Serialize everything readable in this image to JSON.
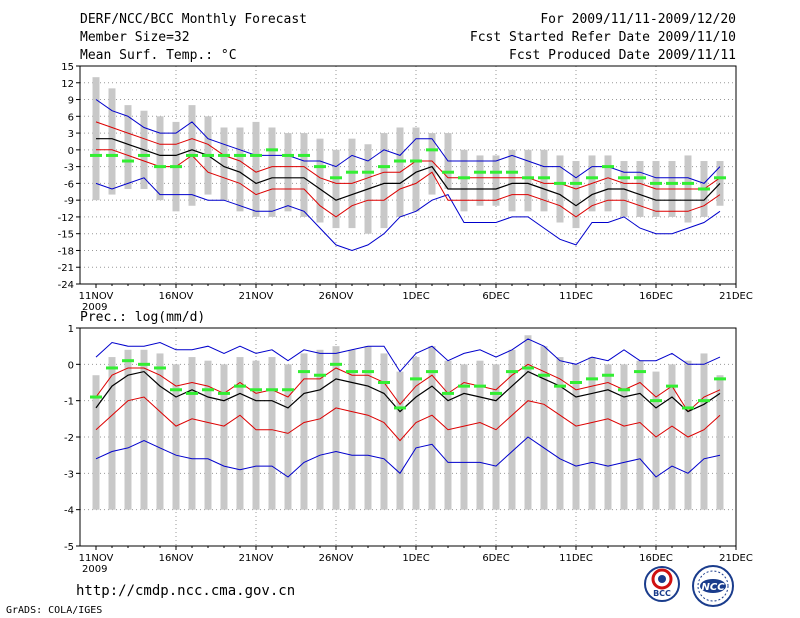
{
  "header": {
    "title": "DERF/NCC/BCC Monthly Forecast",
    "member_size": "Member Size=32",
    "variable_temp": "Mean Surf. Temp.: °C",
    "period": "For 2009/11/11-2009/12/20",
    "started": "Fcst Started Refer Date 2009/11/10",
    "produced": "Fcst Produced Date 2009/11/11"
  },
  "footer": {
    "url": "http://cmdp.ncc.cma.gov.cn",
    "grads": "GrADS: COLA/IGES",
    "logo_bcc": "BCC",
    "logo_ncc": "NCC"
  },
  "colors": {
    "envelope": "#0000cc",
    "quartile": "#dd0000",
    "median": "#000000",
    "mean": "#33ee33",
    "range": "#c8c8c8",
    "grid": "#999999"
  },
  "chart_data": [
    {
      "type": "line",
      "title": "Mean Surf. Temp.: °C",
      "x": [
        "11NOV",
        "12NOV",
        "13NOV",
        "14NOV",
        "15NOV",
        "16NOV",
        "17NOV",
        "18NOV",
        "19NOV",
        "20NOV",
        "21NOV",
        "22NOV",
        "23NOV",
        "24NOV",
        "25NOV",
        "26NOV",
        "27NOV",
        "28NOV",
        "29NOV",
        "30NOV",
        "1DEC",
        "2DEC",
        "3DEC",
        "4DEC",
        "5DEC",
        "6DEC",
        "7DEC",
        "8DEC",
        "9DEC",
        "10DEC",
        "11DEC",
        "12DEC",
        "13DEC",
        "14DEC",
        "15DEC",
        "16DEC",
        "17DEC",
        "18DEC",
        "19DEC",
        "20DEC"
      ],
      "x_ticks": [
        "11NOV",
        "16NOV",
        "21NOV",
        "26NOV",
        "1DEC",
        "6DEC",
        "11DEC",
        "16DEC",
        "21DEC"
      ],
      "x_sublabel": "2009",
      "ylim": [
        -24,
        15
      ],
      "y_ticks": [
        15,
        12,
        9,
        6,
        3,
        0,
        -3,
        -6,
        -9,
        -12,
        -15,
        -18,
        -21,
        -24
      ],
      "series": [
        {
          "name": "range_max",
          "values": [
            13,
            11,
            8,
            7,
            6,
            5,
            8,
            6,
            4,
            4,
            5,
            4,
            3,
            3,
            2,
            0,
            2,
            1,
            3,
            4,
            4,
            3,
            3,
            0,
            -1,
            -1,
            0,
            0,
            0,
            -1,
            -2,
            -1,
            -1,
            -2,
            -2,
            -2,
            -2,
            -1,
            -2,
            -2
          ]
        },
        {
          "name": "range_min",
          "values": [
            -9,
            -8,
            -7,
            -7,
            -9,
            -11,
            -10,
            -8,
            -9,
            -11,
            -12,
            -12,
            -11,
            -12,
            -13,
            -14,
            -14,
            -15,
            -14,
            -12,
            -11,
            -8,
            -7,
            -11,
            -10,
            -10,
            -11,
            -11,
            -11,
            -13,
            -14,
            -11,
            -11,
            -12,
            -12,
            -12,
            -12,
            -13,
            -12,
            -10
          ]
        },
        {
          "name": "upper",
          "values": [
            9,
            7,
            6,
            4,
            3,
            3,
            5,
            2,
            1,
            0,
            -1,
            -1,
            -1,
            -2,
            -2,
            -3,
            -1,
            -2,
            0,
            -1,
            2,
            2,
            -2,
            -2,
            -2,
            -2,
            -1,
            -2,
            -3,
            -3,
            -5,
            -3,
            -3,
            -4,
            -4,
            -5,
            -5,
            -5,
            -6,
            -3
          ]
        },
        {
          "name": "lower",
          "values": [
            -6,
            -7,
            -6,
            -5,
            -8,
            -8,
            -8,
            -9,
            -9,
            -10,
            -11,
            -11,
            -10,
            -11,
            -14,
            -17,
            -18,
            -17,
            -15,
            -12,
            -11,
            -9,
            -8,
            -13,
            -13,
            -13,
            -12,
            -12,
            -14,
            -16,
            -17,
            -13,
            -13,
            -12,
            -14,
            -15,
            -15,
            -14,
            -13,
            -11
          ]
        },
        {
          "name": "q75",
          "values": [
            5,
            4,
            3,
            2,
            1,
            1,
            2,
            1,
            -1,
            -2,
            -4,
            -3,
            -3,
            -3,
            -5,
            -6,
            -6,
            -5,
            -4,
            -4,
            -2,
            -2,
            -5,
            -5,
            -5,
            -5,
            -5,
            -5,
            -6,
            -6,
            -7,
            -6,
            -5,
            -6,
            -6,
            -7,
            -7,
            -7,
            -7,
            -5
          ]
        },
        {
          "name": "q25",
          "values": [
            0,
            0,
            -1,
            -2,
            -3,
            -3,
            -1,
            -4,
            -5,
            -6,
            -8,
            -7,
            -7,
            -7,
            -10,
            -12,
            -10,
            -9,
            -9,
            -7,
            -6,
            -4,
            -9,
            -9,
            -9,
            -9,
            -8,
            -8,
            -9,
            -10,
            -12,
            -10,
            -9,
            -9,
            -10,
            -11,
            -11,
            -11,
            -10,
            -8
          ]
        },
        {
          "name": "median",
          "values": [
            2,
            2,
            1,
            0,
            -1,
            -1,
            0,
            -1,
            -3,
            -4,
            -6,
            -5,
            -5,
            -5,
            -7,
            -9,
            -8,
            -7,
            -6,
            -6,
            -4,
            -3,
            -7,
            -7,
            -7,
            -7,
            -6,
            -6,
            -7,
            -8,
            -10,
            -8,
            -7,
            -7,
            -8,
            -9,
            -9,
            -9,
            -9,
            -6
          ]
        },
        {
          "name": "mean",
          "values": [
            -1,
            -1,
            -2,
            -1,
            -3,
            -3,
            -1,
            -1,
            -1,
            -1,
            -1,
            0,
            -1,
            -1,
            -3,
            -5,
            -4,
            -4,
            -3,
            -2,
            -2,
            0,
            -4,
            -5,
            -4,
            -4,
            -4,
            -5,
            -5,
            -6,
            -6,
            -5,
            -3,
            -5,
            -5,
            -6,
            -6,
            -6,
            -7,
            -5
          ]
        }
      ]
    },
    {
      "type": "line",
      "title": "Prec.: log(mm/d)",
      "x": [
        "11NOV",
        "12NOV",
        "13NOV",
        "14NOV",
        "15NOV",
        "16NOV",
        "17NOV",
        "18NOV",
        "19NOV",
        "20NOV",
        "21NOV",
        "22NOV",
        "23NOV",
        "24NOV",
        "25NOV",
        "26NOV",
        "27NOV",
        "28NOV",
        "29NOV",
        "30NOV",
        "1DEC",
        "2DEC",
        "3DEC",
        "4DEC",
        "5DEC",
        "6DEC",
        "7DEC",
        "8DEC",
        "9DEC",
        "10DEC",
        "11DEC",
        "12DEC",
        "13DEC",
        "14DEC",
        "15DEC",
        "16DEC",
        "17DEC",
        "18DEC",
        "19DEC",
        "20DEC"
      ],
      "x_ticks": [
        "11NOV",
        "16NOV",
        "21NOV",
        "26NOV",
        "1DEC",
        "6DEC",
        "11DEC",
        "16DEC",
        "21DEC"
      ],
      "x_sublabel": "2009",
      "ylim": [
        -5,
        1
      ],
      "y_ticks": [
        1,
        0,
        -1,
        -2,
        -3,
        -4,
        -5
      ],
      "series": [
        {
          "name": "range_max",
          "values": [
            -0.3,
            0.2,
            0.4,
            0.4,
            0.3,
            0.0,
            0.2,
            0.1,
            0.0,
            0.2,
            0.1,
            0.2,
            0.0,
            0.3,
            0.4,
            0.5,
            0.4,
            0.5,
            0.3,
            -0.2,
            0.2,
            0.5,
            0.1,
            0.0,
            0.1,
            0.0,
            0.4,
            0.8,
            0.5,
            0.2,
            0.0,
            0.2,
            0.0,
            0.0,
            0.1,
            -0.2,
            0.0,
            0.1,
            0.3,
            -0.3
          ]
        },
        {
          "name": "range_min",
          "values": [
            -4,
            -4,
            -4,
            -4,
            -4,
            -4,
            -4,
            -4,
            -4,
            -4,
            -4,
            -4,
            -4,
            -4,
            -4,
            -4,
            -4,
            -4,
            -4,
            -4,
            -4,
            -4,
            -4,
            -4,
            -4,
            -4,
            -4,
            -4,
            -4,
            -4,
            -4,
            -4,
            -4,
            -4,
            -4,
            -4,
            -4,
            -4,
            -4,
            -4
          ]
        },
        {
          "name": "upper",
          "values": [
            0.2,
            0.6,
            0.5,
            0.5,
            0.6,
            0.4,
            0.4,
            0.5,
            0.3,
            0.5,
            0.3,
            0.4,
            0.1,
            0.4,
            0.3,
            0.3,
            0.4,
            0.5,
            0.5,
            -0.2,
            0.3,
            0.5,
            0.1,
            0.3,
            0.4,
            0.2,
            0.4,
            0.7,
            0.5,
            0.1,
            0.0,
            0.2,
            0.1,
            0.4,
            0.1,
            0.1,
            0.3,
            0.0,
            0.0,
            0.2
          ]
        },
        {
          "name": "lower",
          "values": [
            -2.6,
            -2.4,
            -2.3,
            -2.1,
            -2.3,
            -2.5,
            -2.6,
            -2.6,
            -2.8,
            -2.9,
            -2.8,
            -2.8,
            -3.1,
            -2.7,
            -2.5,
            -2.4,
            -2.5,
            -2.5,
            -2.6,
            -3.0,
            -2.3,
            -2.2,
            -2.7,
            -2.7,
            -2.7,
            -2.8,
            -2.4,
            -2.0,
            -2.3,
            -2.6,
            -2.8,
            -2.7,
            -2.8,
            -2.7,
            -2.6,
            -3.1,
            -2.8,
            -3.0,
            -2.6,
            -2.5
          ]
        },
        {
          "name": "q75",
          "values": [
            -0.9,
            -0.3,
            -0.1,
            -0.1,
            -0.3,
            -0.6,
            -0.5,
            -0.6,
            -0.8,
            -0.5,
            -0.8,
            -0.7,
            -0.9,
            -0.4,
            -0.4,
            -0.1,
            -0.3,
            -0.3,
            -0.5,
            -1.1,
            -0.6,
            -0.3,
            -0.8,
            -0.5,
            -0.6,
            -0.7,
            -0.3,
            0.0,
            -0.2,
            -0.4,
            -0.7,
            -0.6,
            -0.5,
            -0.7,
            -0.5,
            -0.9,
            -0.6,
            -1.3,
            -0.9,
            -0.7
          ]
        },
        {
          "name": "q25",
          "values": [
            -1.8,
            -1.4,
            -1.0,
            -0.9,
            -1.3,
            -1.7,
            -1.5,
            -1.6,
            -1.7,
            -1.4,
            -1.8,
            -1.8,
            -1.9,
            -1.6,
            -1.5,
            -1.2,
            -1.3,
            -1.4,
            -1.6,
            -2.1,
            -1.6,
            -1.4,
            -1.8,
            -1.7,
            -1.6,
            -1.8,
            -1.4,
            -1.0,
            -1.1,
            -1.4,
            -1.7,
            -1.6,
            -1.5,
            -1.7,
            -1.6,
            -2.0,
            -1.7,
            -2.0,
            -1.8,
            -1.4
          ]
        },
        {
          "name": "median",
          "values": [
            -1.2,
            -0.6,
            -0.3,
            -0.2,
            -0.6,
            -0.9,
            -0.7,
            -0.9,
            -1.0,
            -0.8,
            -1.0,
            -1.0,
            -1.2,
            -0.8,
            -0.7,
            -0.4,
            -0.5,
            -0.6,
            -0.8,
            -1.3,
            -0.9,
            -0.6,
            -1.0,
            -0.8,
            -0.9,
            -1.0,
            -0.6,
            -0.2,
            -0.4,
            -0.6,
            -0.9,
            -0.8,
            -0.7,
            -0.9,
            -0.8,
            -1.2,
            -0.9,
            -1.3,
            -1.1,
            -0.8
          ]
        },
        {
          "name": "mean",
          "values": [
            -0.9,
            -0.1,
            0.1,
            0.0,
            -0.1,
            -0.7,
            -0.8,
            -0.7,
            -0.8,
            -0.6,
            -0.7,
            -0.7,
            -0.7,
            -0.2,
            -0.3,
            0.0,
            -0.2,
            -0.2,
            -0.5,
            -1.2,
            -0.4,
            -0.2,
            -0.8,
            -0.6,
            -0.6,
            -0.8,
            -0.2,
            -0.1,
            -0.3,
            -0.6,
            -0.5,
            -0.4,
            -0.3,
            -0.7,
            -0.2,
            -1.0,
            -0.6,
            -1.2,
            -1.0,
            -0.4
          ]
        }
      ]
    }
  ]
}
